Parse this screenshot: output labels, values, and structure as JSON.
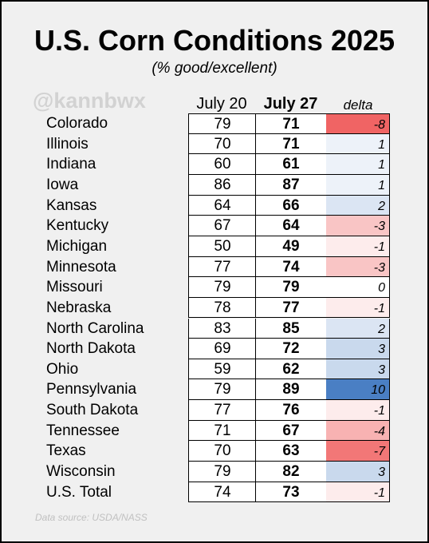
{
  "title": "U.S. Corn Conditions 2025",
  "subtitle": "(% good/excellent)",
  "watermark": "@kannbwx",
  "headers": {
    "col1": "July 20",
    "col2": "July 27",
    "col3": "delta"
  },
  "source": "Data source: USDA/NASS",
  "colors": {
    "negative": "#f06464",
    "positive": "#4a7fc4",
    "neutral": "#ffffff"
  },
  "chart_data": {
    "type": "table",
    "title": "U.S. Corn Conditions 2025",
    "subtitle": "(% good/excellent)",
    "columns": [
      "July 20",
      "July 27",
      "delta"
    ],
    "rows": [
      {
        "state": "Colorado",
        "jul20": 79,
        "jul27": 71,
        "delta": -8
      },
      {
        "state": "Illinois",
        "jul20": 70,
        "jul27": 71,
        "delta": 1
      },
      {
        "state": "Indiana",
        "jul20": 60,
        "jul27": 61,
        "delta": 1
      },
      {
        "state": "Iowa",
        "jul20": 86,
        "jul27": 87,
        "delta": 1
      },
      {
        "state": "Kansas",
        "jul20": 64,
        "jul27": 66,
        "delta": 2
      },
      {
        "state": "Kentucky",
        "jul20": 67,
        "jul27": 64,
        "delta": -3
      },
      {
        "state": "Michigan",
        "jul20": 50,
        "jul27": 49,
        "delta": -1
      },
      {
        "state": "Minnesota",
        "jul20": 77,
        "jul27": 74,
        "delta": -3
      },
      {
        "state": "Missouri",
        "jul20": 79,
        "jul27": 79,
        "delta": 0
      },
      {
        "state": "Nebraska",
        "jul20": 78,
        "jul27": 77,
        "delta": -1
      },
      {
        "state": "North Carolina",
        "jul20": 83,
        "jul27": 85,
        "delta": 2
      },
      {
        "state": "North Dakota",
        "jul20": 69,
        "jul27": 72,
        "delta": 3
      },
      {
        "state": "Ohio",
        "jul20": 59,
        "jul27": 62,
        "delta": 3
      },
      {
        "state": "Pennsylvania",
        "jul20": 79,
        "jul27": 89,
        "delta": 10
      },
      {
        "state": "South Dakota",
        "jul20": 77,
        "jul27": 76,
        "delta": -1
      },
      {
        "state": "Tennessee",
        "jul20": 71,
        "jul27": 67,
        "delta": -4
      },
      {
        "state": "Texas",
        "jul20": 70,
        "jul27": 63,
        "delta": -7
      },
      {
        "state": "Wisconsin",
        "jul20": 79,
        "jul27": 82,
        "delta": 3
      },
      {
        "state": "U.S. Total",
        "jul20": 74,
        "jul27": 73,
        "delta": -1
      }
    ]
  }
}
